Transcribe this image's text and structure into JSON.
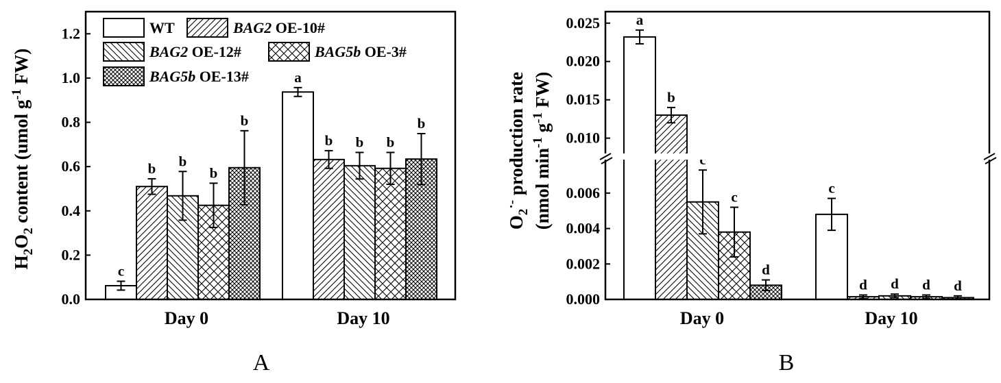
{
  "figure": {
    "panel_labels": [
      "A",
      "B"
    ]
  },
  "legend": {
    "entries": [
      {
        "name": "WT",
        "pattern": "white"
      },
      {
        "name": "BAG2 OE-10#",
        "italic": "BAG2",
        "rest": " OE-10#",
        "pattern": "diag-right"
      },
      {
        "name": "BAG2 OE-12#",
        "italic": "BAG2",
        "rest": " OE-12#",
        "pattern": "diag-left"
      },
      {
        "name": "BAG5b OE-3#",
        "italic": "BAG5b",
        "rest": " OE-3#",
        "pattern": "cross"
      },
      {
        "name": "BAG5b OE-13#",
        "italic": "BAG5b",
        "rest": " OE-13#",
        "pattern": "dense-cross"
      }
    ]
  },
  "chart_data": [
    {
      "panel": "A",
      "type": "bar",
      "ylabel": "H2O2 content (umol g-1 FW)",
      "categories": [
        "Day 0",
        "Day 10"
      ],
      "ylim": [
        0,
        1.3
      ],
      "yticks": [
        "0.0",
        "0.2",
        "0.4",
        "0.6",
        "0.8",
        "1.0",
        "1.2"
      ],
      "series": [
        {
          "name": "WT",
          "values": [
            0.062,
            0.937
          ],
          "errors": [
            0.02,
            0.02
          ],
          "letters": [
            "c",
            "a"
          ]
        },
        {
          "name": "BAG2 OE-10#",
          "values": [
            0.51,
            0.632
          ],
          "errors": [
            0.035,
            0.04
          ],
          "letters": [
            "b",
            "b"
          ]
        },
        {
          "name": "BAG2 OE-12#",
          "values": [
            0.468,
            0.604
          ],
          "errors": [
            0.11,
            0.06
          ],
          "letters": [
            "b",
            "b"
          ]
        },
        {
          "name": "BAG5b OE-3#",
          "values": [
            0.425,
            0.592
          ],
          "errors": [
            0.1,
            0.072
          ],
          "letters": [
            "b",
            "b"
          ]
        },
        {
          "name": "BAG5b OE-13#",
          "values": [
            0.595,
            0.634
          ],
          "errors": [
            0.167,
            0.115
          ],
          "letters": [
            "b",
            "b"
          ]
        }
      ],
      "grid": false,
      "legend_position": "top-left"
    },
    {
      "panel": "B",
      "type": "bar",
      "ylabel": "O2·- production rate (nmol min-1 g-1 FW)",
      "categories": [
        "Day 0",
        "Day 10"
      ],
      "broken_axis": true,
      "ylim_lower": [
        0,
        0.0075
      ],
      "ylim_upper": [
        0.008,
        0.0265
      ],
      "yticks_lower": [
        "0.000",
        "0.002",
        "0.004",
        "0.006"
      ],
      "yticks_upper": [
        "0.010",
        "0.015",
        "0.020",
        "0.025"
      ],
      "series": [
        {
          "name": "WT",
          "values": [
            0.0232,
            0.0048
          ],
          "errors": [
            0.0009,
            0.0009
          ],
          "letters": [
            "a",
            "c"
          ]
        },
        {
          "name": "BAG2 OE-10#",
          "values": [
            0.013,
            0.00015
          ],
          "errors": [
            0.001,
            0.0001
          ],
          "letters": [
            "b",
            "d"
          ]
        },
        {
          "name": "BAG2 OE-12#",
          "values": [
            0.0055,
            0.0002
          ],
          "errors": [
            0.0018,
            0.0001
          ],
          "letters": [
            "c",
            "d"
          ]
        },
        {
          "name": "BAG5b OE-3#",
          "values": [
            0.0038,
            0.00015
          ],
          "errors": [
            0.0014,
            0.0001
          ],
          "letters": [
            "c",
            "d"
          ]
        },
        {
          "name": "BAG5b OE-13#",
          "values": [
            0.0008,
            0.0001
          ],
          "errors": [
            0.0003,
            0.0001
          ],
          "letters": [
            "d",
            "d"
          ]
        }
      ],
      "grid": false
    }
  ]
}
